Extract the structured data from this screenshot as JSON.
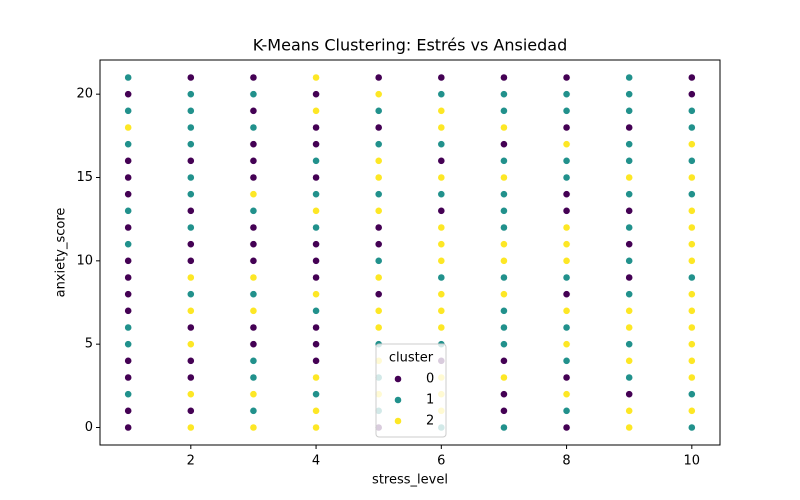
{
  "chart_data": {
    "type": "scatter",
    "title": "K-Means Clustering: Estrés vs Ansiedad",
    "x_label": "stress_level",
    "y_label": "anxiety_score",
    "xlim": [
      0.55,
      10.45
    ],
    "ylim": [
      -1.05,
      22.05
    ],
    "xticks": [
      2,
      4,
      6,
      8,
      10
    ],
    "yticks": [
      0,
      5,
      10,
      15,
      20
    ],
    "legend_title": "cluster",
    "legend_position": "lower center",
    "series": [
      {
        "name": "0",
        "color": "#440154",
        "x": [
          1,
          1,
          1,
          1,
          1,
          1,
          1,
          1,
          1,
          1,
          1,
          1,
          1,
          2,
          2,
          2,
          2,
          2,
          2,
          2,
          2,
          2,
          3,
          3,
          3,
          3,
          3,
          3,
          3,
          3,
          3,
          3,
          4,
          4,
          4,
          4,
          4,
          4,
          4,
          4,
          4,
          4,
          5,
          5,
          5,
          5,
          5,
          5,
          6,
          6,
          6,
          6,
          7,
          7,
          7,
          7,
          7,
          8,
          8,
          8,
          8,
          8,
          8,
          8,
          9,
          9,
          9,
          9,
          9,
          10,
          10
        ],
        "y": [
          20,
          16,
          15,
          14,
          12,
          10,
          9,
          8,
          7,
          4,
          3,
          1,
          0,
          21,
          16,
          13,
          11,
          10,
          6,
          4,
          3,
          1,
          21,
          19,
          17,
          16,
          15,
          12,
          11,
          10,
          6,
          5,
          20,
          18,
          17,
          15,
          11,
          10,
          9,
          6,
          5,
          4,
          21,
          18,
          12,
          11,
          8,
          0,
          21,
          16,
          13,
          4,
          21,
          17,
          4,
          2,
          1,
          21,
          18,
          14,
          13,
          8,
          3,
          0,
          18,
          13,
          11,
          9,
          2,
          21,
          20
        ]
      },
      {
        "name": "1",
        "color": "#21918c",
        "x": [
          1,
          1,
          1,
          1,
          1,
          1,
          1,
          1,
          2,
          2,
          2,
          2,
          2,
          2,
          2,
          2,
          3,
          3,
          3,
          3,
          3,
          3,
          3,
          4,
          4,
          4,
          4,
          4,
          5,
          5,
          5,
          5,
          5,
          5,
          5,
          6,
          6,
          6,
          6,
          6,
          6,
          7,
          7,
          7,
          7,
          7,
          7,
          7,
          7,
          7,
          7,
          7,
          8,
          8,
          8,
          8,
          8,
          8,
          8,
          8,
          9,
          9,
          9,
          9,
          9,
          9,
          9,
          9,
          9,
          9,
          9,
          10,
          10,
          10,
          10,
          10,
          10,
          10
        ],
        "y": [
          21,
          19,
          17,
          13,
          11,
          6,
          5,
          2,
          20,
          19,
          18,
          17,
          15,
          14,
          12,
          8,
          20,
          18,
          13,
          8,
          4,
          3,
          1,
          16,
          14,
          12,
          7,
          2,
          19,
          17,
          14,
          10,
          5,
          3,
          1,
          20,
          17,
          14,
          9,
          5,
          0,
          20,
          19,
          16,
          14,
          13,
          12,
          9,
          7,
          6,
          5,
          0,
          20,
          19,
          16,
          15,
          9,
          6,
          4,
          1,
          21,
          20,
          19,
          17,
          16,
          14,
          12,
          10,
          8,
          5,
          3,
          19,
          18,
          16,
          14,
          9,
          2,
          0
        ]
      },
      {
        "name": "2",
        "color": "#fde725",
        "x": [
          1,
          2,
          2,
          2,
          2,
          2,
          3,
          3,
          3,
          3,
          3,
          4,
          4,
          4,
          4,
          4,
          4,
          4,
          5,
          5,
          5,
          5,
          5,
          5,
          5,
          5,
          5,
          6,
          6,
          6,
          6,
          6,
          6,
          6,
          6,
          6,
          6,
          6,
          6,
          7,
          7,
          7,
          7,
          7,
          7,
          8,
          8,
          8,
          8,
          8,
          8,
          8,
          9,
          9,
          9,
          9,
          9,
          9,
          10,
          10,
          10,
          10,
          10,
          10,
          10,
          10,
          10,
          10,
          10,
          10,
          10
        ],
        "y": [
          18,
          9,
          7,
          5,
          2,
          0,
          14,
          9,
          7,
          2,
          0,
          21,
          19,
          13,
          8,
          3,
          1,
          0,
          20,
          16,
          15,
          13,
          9,
          7,
          6,
          4,
          2,
          19,
          18,
          15,
          12,
          11,
          10,
          8,
          7,
          6,
          3,
          2,
          1,
          18,
          15,
          11,
          10,
          8,
          3,
          17,
          12,
          11,
          10,
          7,
          5,
          2,
          15,
          7,
          6,
          4,
          1,
          0,
          17,
          15,
          13,
          12,
          11,
          10,
          8,
          7,
          6,
          5,
          4,
          3,
          1
        ]
      }
    ]
  }
}
